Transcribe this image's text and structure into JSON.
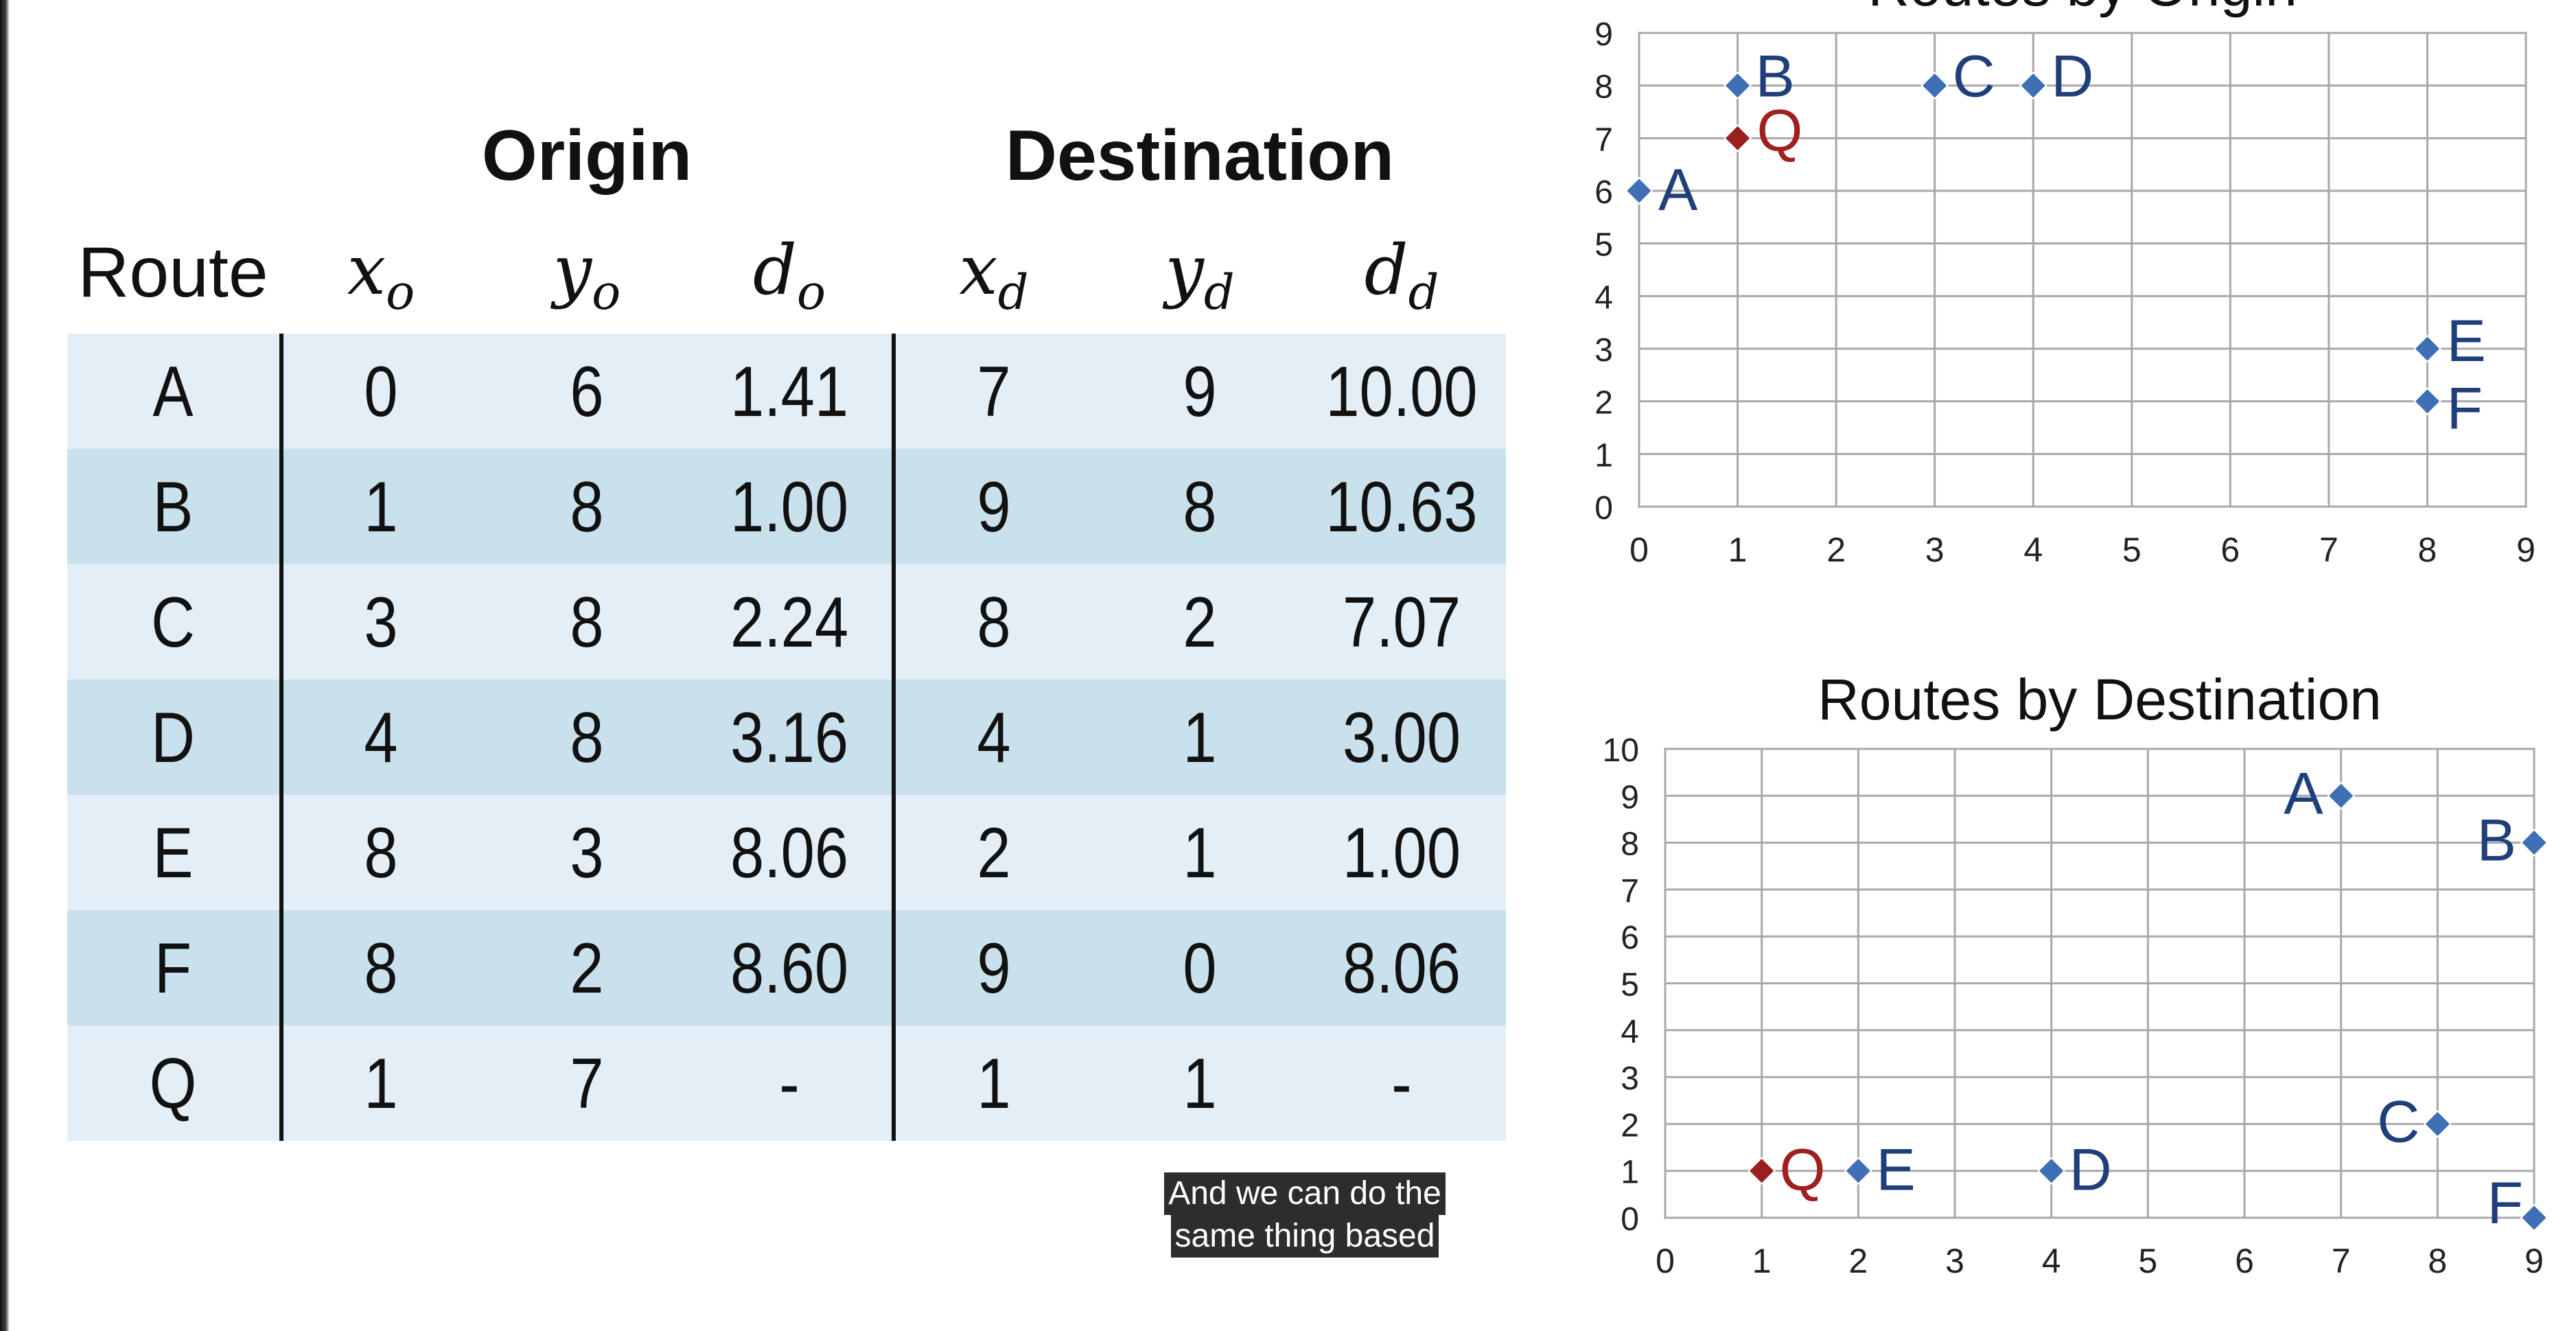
{
  "table": {
    "group_origin": "Origin",
    "group_destination": "Destination",
    "route_header": "Route",
    "columns": [
      {
        "base": "x",
        "sub": "o"
      },
      {
        "base": "y",
        "sub": "o"
      },
      {
        "base": "d",
        "sub": "o"
      },
      {
        "base": "x",
        "sub": "d"
      },
      {
        "base": "y",
        "sub": "d"
      },
      {
        "base": "d",
        "sub": "d"
      }
    ],
    "rows": [
      [
        "A",
        "0",
        "6",
        "1.41",
        "7",
        "9",
        "10.00"
      ],
      [
        "B",
        "1",
        "8",
        "1.00",
        "9",
        "8",
        "10.63"
      ],
      [
        "C",
        "3",
        "8",
        "2.24",
        "8",
        "2",
        "7.07"
      ],
      [
        "D",
        "4",
        "8",
        "3.16",
        "4",
        "1",
        "3.00"
      ],
      [
        "E",
        "8",
        "3",
        "8.06",
        "2",
        "1",
        "1.00"
      ],
      [
        "F",
        "8",
        "2",
        "8.60",
        "9",
        "0",
        "8.06"
      ],
      [
        "Q",
        "1",
        "7",
        "-",
        "1",
        "1",
        "-"
      ]
    ],
    "row_colors": [
      "#e4eef6",
      "#c9e1ec"
    ]
  },
  "chart_data": [
    {
      "type": "scatter",
      "title": "Routes by Origin",
      "xlabel": "",
      "ylabel": "",
      "xlim": [
        0,
        9
      ],
      "ylim": [
        0,
        9
      ],
      "xticks": [
        "0",
        "1",
        "2",
        "3",
        "4",
        "5",
        "6",
        "7",
        "8",
        "9"
      ],
      "yticks": [
        "0",
        "1",
        "2",
        "3",
        "4",
        "5",
        "6",
        "7",
        "8",
        "9"
      ],
      "grid": true,
      "points": [
        {
          "label": "A",
          "x": 0,
          "y": 6,
          "color": "#3f6fb5"
        },
        {
          "label": "B",
          "x": 1,
          "y": 8,
          "color": "#3f6fb5"
        },
        {
          "label": "C",
          "x": 3,
          "y": 8,
          "color": "#3f6fb5"
        },
        {
          "label": "D",
          "x": 4,
          "y": 8,
          "color": "#3f6fb5"
        },
        {
          "label": "E",
          "x": 8,
          "y": 3,
          "color": "#3f6fb5"
        },
        {
          "label": "F",
          "x": 8,
          "y": 2,
          "color": "#3f6fb5"
        },
        {
          "label": "Q",
          "x": 1,
          "y": 7,
          "color": "#9b1f1f"
        }
      ]
    },
    {
      "type": "scatter",
      "title": "Routes by Destination",
      "xlabel": "",
      "ylabel": "",
      "xlim": [
        0,
        9
      ],
      "ylim": [
        0,
        10
      ],
      "xticks": [
        "0",
        "1",
        "2",
        "3",
        "4",
        "5",
        "6",
        "7",
        "8",
        "9"
      ],
      "yticks": [
        "0",
        "1",
        "2",
        "3",
        "4",
        "5",
        "6",
        "7",
        "8",
        "9",
        "10"
      ],
      "grid": true,
      "points": [
        {
          "label": "A",
          "x": 7,
          "y": 9,
          "color": "#3f6fb5"
        },
        {
          "label": "B",
          "x": 9,
          "y": 8,
          "color": "#3f6fb5"
        },
        {
          "label": "C",
          "x": 8,
          "y": 2,
          "color": "#3f6fb5"
        },
        {
          "label": "D",
          "x": 4,
          "y": 1,
          "color": "#3f6fb5"
        },
        {
          "label": "E",
          "x": 2,
          "y": 1,
          "color": "#3f6fb5"
        },
        {
          "label": "F",
          "x": 9,
          "y": 0,
          "color": "#3f6fb5"
        },
        {
          "label": "Q",
          "x": 1,
          "y": 1,
          "color": "#9b1f1f"
        }
      ]
    }
  ],
  "caption": {
    "line1": "And we can do the",
    "line2": "same thing based"
  }
}
